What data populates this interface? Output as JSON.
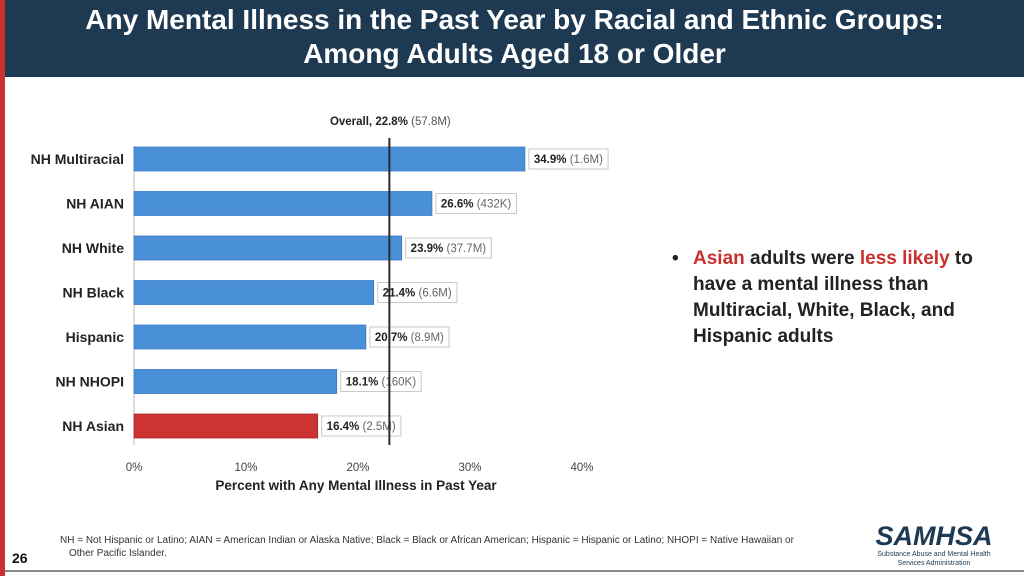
{
  "header": {
    "title_line1": "Any Mental Illness in the Past Year by Racial and Ethnic Groups:",
    "title_line2": "Among Adults Aged 18 or Older"
  },
  "chart_data": {
    "type": "bar",
    "orientation": "horizontal",
    "title": "",
    "reference_label_bold": "Overall, 22.8%",
    "reference_label_count": "(57.8M)",
    "reference_value": 22.8,
    "categories": [
      "NH Multiracial",
      "NH AIAN",
      "NH White",
      "NH Black",
      "Hispanic",
      "NH NHOPI",
      "NH Asian"
    ],
    "values": [
      34.9,
      26.6,
      23.9,
      21.4,
      20.7,
      18.1,
      16.4
    ],
    "value_labels": [
      "34.9%",
      "26.6%",
      "23.9%",
      "21.4%",
      "20.7%",
      "18.1%",
      "16.4%"
    ],
    "count_labels": [
      "(1.6M)",
      "(432K)",
      "(37.7M)",
      "(6.6M)",
      "(8.9M)",
      "(160K)",
      "(2.5M)"
    ],
    "highlight": "NH Asian",
    "xlim": [
      0,
      40
    ],
    "xticks": [
      0,
      10,
      20,
      30,
      40
    ],
    "xtick_labels": [
      "0%",
      "10%",
      "20%",
      "30%",
      "40%"
    ],
    "xlabel": "Percent with Any Mental Illness in Past Year",
    "ylabel": ""
  },
  "bullet": {
    "marker": "•",
    "word1": "Asian",
    "text1": " adults were ",
    "word2": "less likely",
    "text2": " to have a mental illness than Multiracial, White, Black, and Hispanic adults"
  },
  "footnote": {
    "line1": "NH = Not Hispanic or Latino; AIAN = American Indian or Alaska Native; Black = Black or African American; Hispanic = Hispanic or Latino; NHOPI = Native Hawaiian or",
    "line2": "Other Pacific Islander."
  },
  "page_number": "26",
  "logo": {
    "name": "SAMHSA",
    "line1": "Substance Abuse and Mental Health",
    "line2": "Services Administration"
  },
  "colors": {
    "bar": "#4a90d9",
    "highlight_bar": "#cc3333",
    "header_bg": "#1e3a52",
    "accent_red": "#c8312f"
  }
}
